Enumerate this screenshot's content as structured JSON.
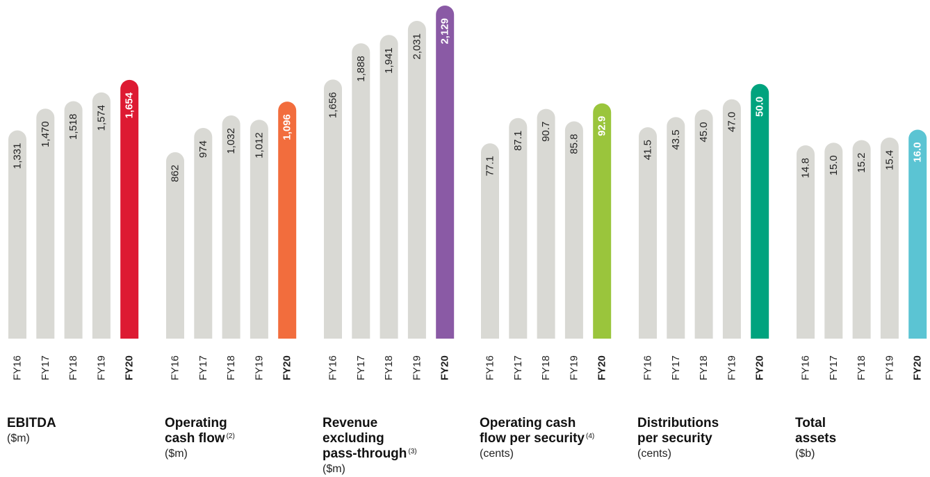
{
  "colors": {
    "previous_years_bar": "#d9d9d4",
    "panel_highlights": [
      "#dd1a32",
      "#f26d3d",
      "#8a5aa5",
      "#9ac53c",
      "#00a37e",
      "#5bc4d3"
    ]
  },
  "chart_data": [
    {
      "type": "bar",
      "title": "EBITDA",
      "unit": "($m)",
      "categories": [
        "FY16",
        "FY17",
        "FY18",
        "FY19",
        "FY20"
      ],
      "values": [
        1331,
        1470,
        1518,
        1574,
        1654
      ],
      "value_labels": [
        "1,331",
        "1,470",
        "1,518",
        "1,574",
        "1,654"
      ],
      "highlight": "FY20",
      "ylim": [
        0,
        2129
      ]
    },
    {
      "type": "bar",
      "title": "Operating\ncash flow",
      "footnote": "(2)",
      "unit": "($m)",
      "categories": [
        "FY16",
        "FY17",
        "FY18",
        "FY19",
        "FY20"
      ],
      "values": [
        862,
        974,
        1032,
        1012,
        1096
      ],
      "value_labels": [
        "862",
        "974",
        "1,032",
        "1,012",
        "1,096"
      ],
      "highlight": "FY20",
      "ylim": [
        0,
        1540
      ]
    },
    {
      "type": "bar",
      "title": "Revenue\nexcluding\npass-through",
      "footnote": "(3)",
      "unit": "($m)",
      "categories": [
        "FY16",
        "FY17",
        "FY18",
        "FY19",
        "FY20"
      ],
      "values": [
        1656,
        1888,
        1941,
        2031,
        2129
      ],
      "value_labels": [
        "1,656",
        "1,888",
        "1,941",
        "2,031",
        "2,129"
      ],
      "highlight": "FY20",
      "ylim": [
        0,
        2129
      ]
    },
    {
      "type": "bar",
      "title": "Operating cash\nflow per security",
      "footnote": "(4)",
      "unit": "(cents)",
      "categories": [
        "FY16",
        "FY17",
        "FY18",
        "FY19",
        "FY20"
      ],
      "values": [
        77.1,
        87.1,
        90.7,
        85.8,
        92.9
      ],
      "value_labels": [
        "77.1",
        "87.1",
        "90.7",
        "85.8",
        "92.9"
      ],
      "highlight": "FY20",
      "ylim": [
        0,
        131.5
      ]
    },
    {
      "type": "bar",
      "title": "Distributions\nper security",
      "unit": "(cents)",
      "categories": [
        "FY16",
        "FY17",
        "FY18",
        "FY19",
        "FY20"
      ],
      "values": [
        41.5,
        43.5,
        45.0,
        47.0,
        50.0
      ],
      "value_labels": [
        "41.5",
        "43.5",
        "45.0",
        "47.0",
        "50.0"
      ],
      "highlight": "FY20",
      "ylim": [
        0,
        65.4
      ]
    },
    {
      "type": "bar",
      "title": "Total\nassets",
      "unit": "($b)",
      "categories": [
        "FY16",
        "FY17",
        "FY18",
        "FY19",
        "FY20"
      ],
      "values": [
        14.8,
        15.0,
        15.2,
        15.4,
        16.0
      ],
      "value_labels": [
        "14.8",
        "15.0",
        "15.2",
        "15.4",
        "16.0"
      ],
      "highlight": "FY20",
      "ylim": [
        0,
        25.5
      ]
    }
  ]
}
